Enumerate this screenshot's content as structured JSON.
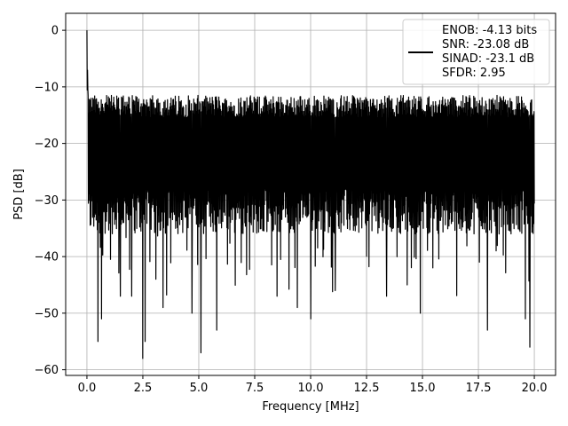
{
  "chart_data": {
    "type": "line",
    "xlabel": "Frequency [MHz]",
    "ylabel": "PSD [dB]",
    "xlim": [
      -0.95,
      20.95
    ],
    "ylim": [
      -61,
      3
    ],
    "x_ticks": [
      0.0,
      2.5,
      5.0,
      7.5,
      10.0,
      12.5,
      15.0,
      17.5,
      20.0
    ],
    "x_tick_labels": [
      "0.0",
      "2.5",
      "5.0",
      "7.5",
      "10.0",
      "12.5",
      "15.0",
      "17.5",
      "20.0"
    ],
    "y_ticks": [
      0,
      -10,
      -20,
      -30,
      -40,
      -50,
      -60
    ],
    "y_tick_labels": [
      "0",
      "−10",
      "−20",
      "−30",
      "−40",
      "−50",
      "−60"
    ],
    "grid": true,
    "legend_position": "top-right",
    "line_color": "#000000",
    "series": [
      {
        "legend_lines": [
          "ENOB: -4.13 bits",
          "SNR: -23.08 dB",
          "SINAD: -23.1 dB",
          "SFDR: 2.95"
        ],
        "x_range": [
          0.0,
          20.0
        ],
        "peak": {
          "x": 0.0,
          "y": 0.0
        },
        "envelope_upper_db": -13,
        "envelope_typical_low_db": -33,
        "min_db": -58,
        "deep_notches": [
          {
            "x": 0.5,
            "y": -55
          },
          {
            "x": 0.65,
            "y": -51
          },
          {
            "x": 1.5,
            "y": -47
          },
          {
            "x": 2.0,
            "y": -47
          },
          {
            "x": 2.5,
            "y": -58
          },
          {
            "x": 2.6,
            "y": -55
          },
          {
            "x": 3.4,
            "y": -49
          },
          {
            "x": 4.7,
            "y": -50
          },
          {
            "x": 5.1,
            "y": -57
          },
          {
            "x": 5.8,
            "y": -53
          },
          {
            "x": 8.5,
            "y": -47
          },
          {
            "x": 9.4,
            "y": -49
          },
          {
            "x": 10.0,
            "y": -51
          },
          {
            "x": 11.1,
            "y": -46
          },
          {
            "x": 13.4,
            "y": -47
          },
          {
            "x": 14.9,
            "y": -50
          },
          {
            "x": 17.9,
            "y": -53
          },
          {
            "x": 19.6,
            "y": -51
          },
          {
            "x": 19.8,
            "y": -56
          }
        ]
      }
    ]
  }
}
